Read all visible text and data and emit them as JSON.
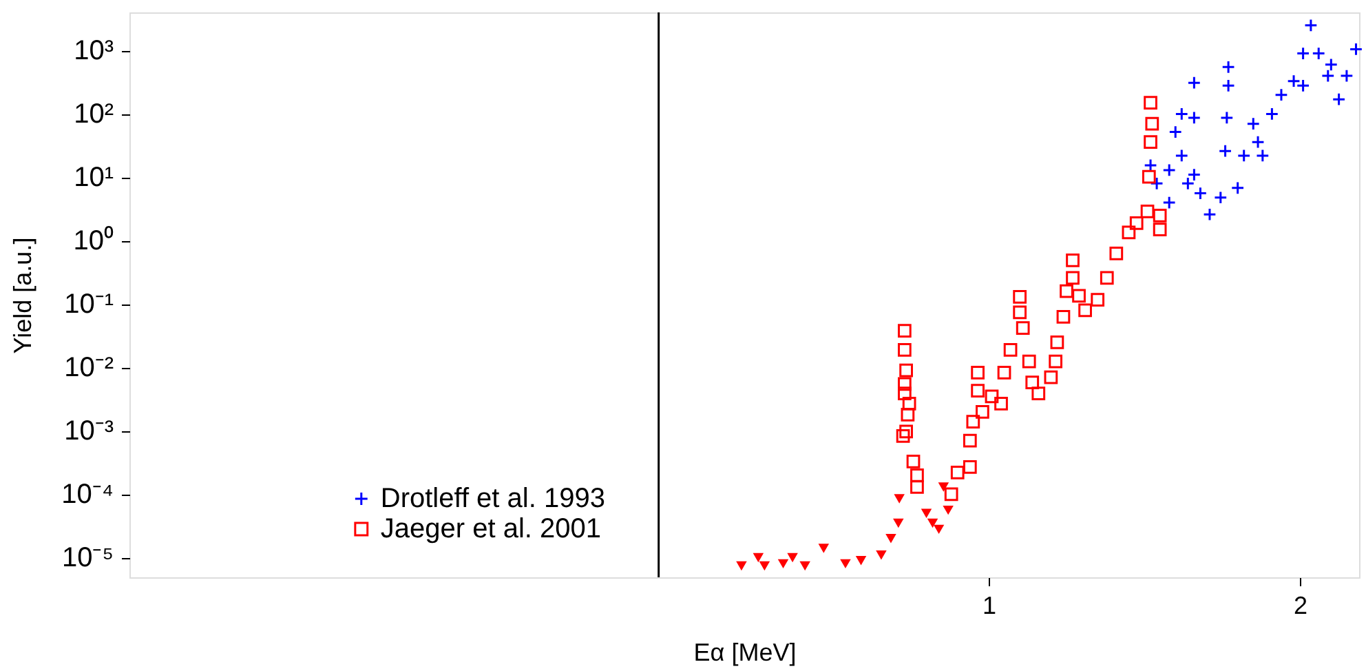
{
  "chart_data": {
    "type": "scatter",
    "xlabel": "Eα [MeV]",
    "ylabel": "Yield [a.u.]",
    "log": "y",
    "grid": false,
    "legend": "bottom",
    "xlim": [
      -1.76,
      2.19
    ],
    "xticks": [
      1,
      2
    ],
    "ylim": [
      4.9e-06,
      4000
    ],
    "yticks": [
      {
        "value": 1e-05,
        "label": "10⁻⁵"
      },
      {
        "value": 0.0001,
        "label": "10⁻⁴"
      },
      {
        "value": 0.001,
        "label": "10⁻³"
      },
      {
        "value": 0.01,
        "label": "10⁻²"
      },
      {
        "value": 0.1,
        "label": "10⁻¹"
      },
      {
        "value": 1,
        "label": "10⁰"
      },
      {
        "value": 10,
        "label": "10¹"
      },
      {
        "value": 100,
        "label": "10²"
      },
      {
        "value": 1000,
        "label": "10³"
      }
    ],
    "ref_lines": [
      {
        "axis": "x",
        "value": -0.06,
        "color": "#000000"
      }
    ],
    "series": [
      {
        "name": "Drotleff et al. 1993",
        "color": "#0000ff",
        "marker": "cross",
        "x": [
          1.52,
          1.54,
          1.58,
          1.58,
          1.6,
          1.62,
          1.62,
          1.64,
          1.66,
          1.66,
          1.66,
          1.68,
          1.71,
          1.745,
          1.76,
          1.765,
          1.77,
          1.77,
          1.8,
          1.82,
          1.85,
          1.865,
          1.88,
          1.91,
          1.94,
          1.98,
          2.01,
          2.01,
          2.035,
          2.06,
          2.09,
          2.1,
          2.125,
          2.15,
          2.18
        ],
        "values": [
          15.5,
          8,
          4,
          13,
          52,
          100,
          22,
          8,
          310,
          87,
          11,
          5.6,
          2.6,
          4.8,
          26,
          87,
          280,
          550,
          6.8,
          22,
          70,
          36,
          22,
          100,
          200,
          330,
          280,
          900,
          2500,
          900,
          400,
          600,
          170,
          400,
          1050
        ]
      },
      {
        "name": "Jaeger  et al. 2001",
        "color": "#ff0000",
        "marker": "square",
        "x": [
          0.73,
          0.73,
          0.735,
          0.73,
          0.73,
          0.745,
          0.74,
          0.735,
          0.725,
          0.758,
          0.77,
          0.77,
          0.88,
          0.9,
          0.94,
          0.94,
          0.95,
          0.98,
          0.965,
          0.965,
          1.01,
          1.04,
          1.05,
          1.07,
          1.1,
          1.1,
          1.11,
          1.13,
          1.14,
          1.16,
          1.2,
          1.215,
          1.22,
          1.24,
          1.25,
          1.27,
          1.27,
          1.29,
          1.31,
          1.35,
          1.38,
          1.41,
          1.45,
          1.475,
          1.51,
          1.515,
          1.52,
          1.52,
          1.525,
          1.55,
          1.55
        ],
        "values": [
          0.038,
          0.019,
          0.009,
          0.0055,
          0.0039,
          0.0027,
          0.0018,
          0.00098,
          0.00083,
          0.00033,
          0.0002,
          0.00013,
          0.0001,
          0.00022,
          0.00027,
          0.0007,
          0.0014,
          0.002,
          0.0043,
          0.0083,
          0.0035,
          0.0027,
          0.0083,
          0.019,
          0.13,
          0.074,
          0.042,
          0.0125,
          0.0058,
          0.0039,
          0.007,
          0.0125,
          0.025,
          0.063,
          0.16,
          0.49,
          0.26,
          0.135,
          0.08,
          0.117,
          0.26,
          0.63,
          1.35,
          1.9,
          2.9,
          10.2,
          36,
          150,
          70,
          1.5,
          2.5
        ]
      },
      {
        "color": "#ff0000",
        "marker": "triangle",
        "x": [
          0.206,
          0.26,
          0.28,
          0.34,
          0.37,
          0.41,
          0.47,
          0.54,
          0.59,
          0.655,
          0.686,
          0.71,
          0.713,
          0.8,
          0.82,
          0.84,
          0.855,
          0.87
        ],
        "values": [
          7.4e-06,
          1e-05,
          7.4e-06,
          8e-06,
          1e-05,
          7.4e-06,
          1.4e-05,
          8e-06,
          9e-06,
          1.1e-05,
          2e-05,
          3.5e-05,
          8.5e-05,
          5e-05,
          3.5e-05,
          2.8e-05,
          0.00013,
          5.6e-05
        ]
      }
    ]
  }
}
